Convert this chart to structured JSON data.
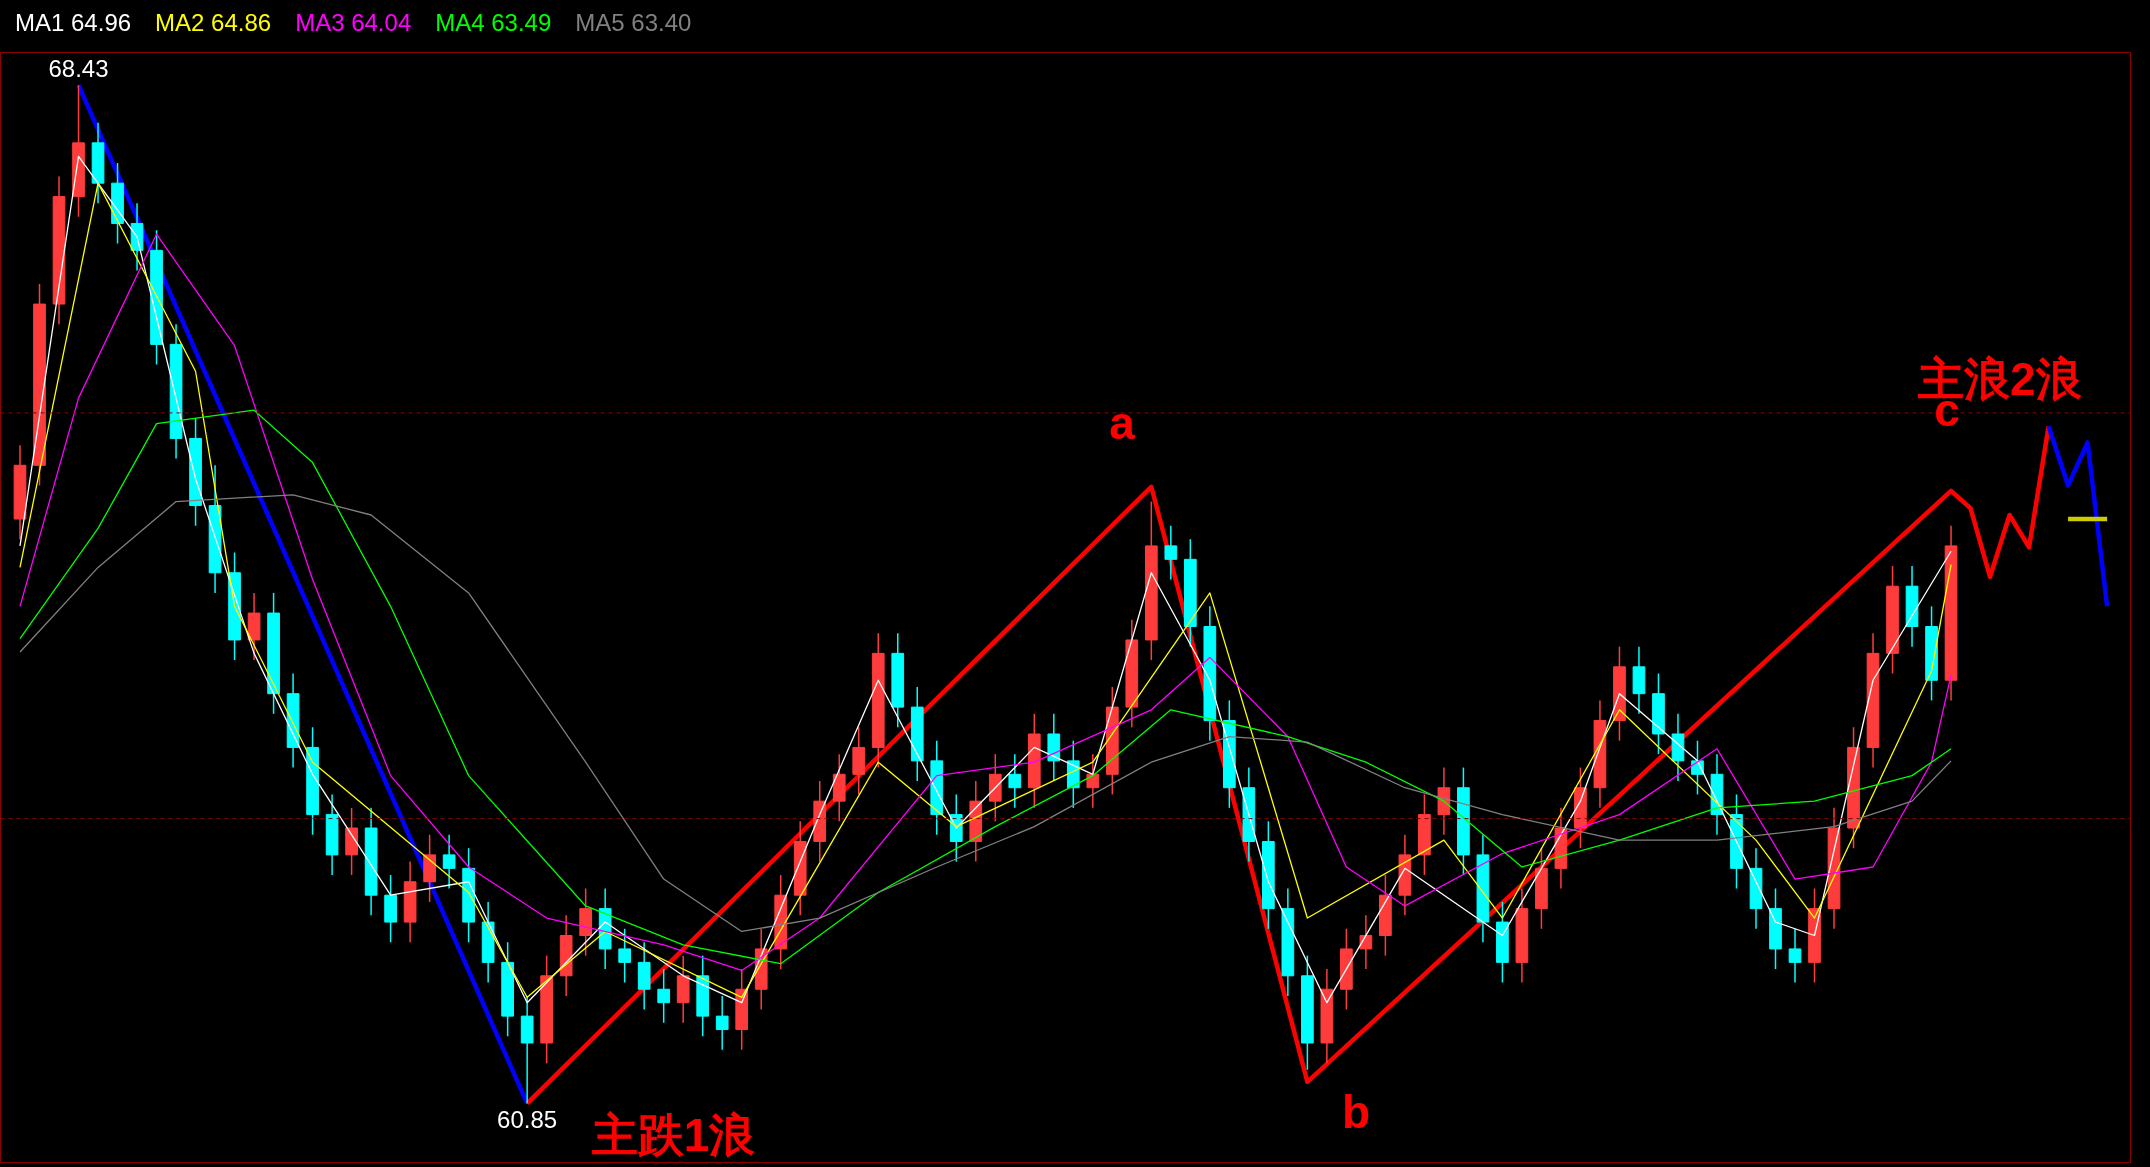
{
  "chart_data": {
    "type": "candlestick",
    "categories": [
      null,
      null,
      null,
      null,
      null,
      null,
      null,
      null,
      null,
      null,
      null,
      null,
      null,
      null,
      null,
      null,
      null,
      null,
      null,
      null,
      null,
      null,
      null,
      null,
      null,
      null,
      null,
      null,
      null,
      null,
      null,
      null,
      null,
      null,
      null,
      null,
      null,
      null,
      null,
      null,
      null,
      null,
      null,
      null,
      null,
      null,
      null,
      null,
      null,
      null,
      null,
      null,
      null,
      null,
      null,
      null,
      null,
      null,
      null,
      null,
      null,
      null,
      null,
      null,
      null,
      null,
      null,
      null,
      null,
      null,
      null,
      null,
      null,
      null,
      null,
      null,
      null,
      null,
      null,
      null,
      null,
      null,
      null,
      null,
      null,
      null,
      null,
      null,
      null,
      null,
      null,
      null,
      null,
      null,
      null,
      null,
      null,
      null,
      null,
      null,
      null,
      null,
      null,
      null,
      null,
      null,
      null,
      null
    ],
    "ohlc": [
      [
        65.2,
        65.75,
        65.05,
        65.6
      ],
      [
        65.6,
        66.95,
        65.45,
        66.8
      ],
      [
        66.8,
        67.75,
        66.65,
        67.6
      ],
      [
        67.6,
        68.43,
        67.45,
        68.0
      ],
      [
        68.0,
        68.15,
        67.55,
        67.7
      ],
      [
        67.7,
        67.85,
        67.25,
        67.4
      ],
      [
        67.4,
        67.55,
        67.05,
        67.2
      ],
      [
        67.2,
        67.35,
        66.35,
        66.5
      ],
      [
        66.5,
        66.65,
        65.65,
        65.8
      ],
      [
        65.8,
        65.95,
        65.15,
        65.3
      ],
      [
        65.3,
        65.6,
        64.65,
        64.8
      ],
      [
        64.8,
        64.95,
        64.15,
        64.3
      ],
      [
        64.3,
        64.65,
        64.15,
        64.5
      ],
      [
        64.5,
        64.65,
        63.75,
        63.9
      ],
      [
        63.9,
        64.05,
        63.35,
        63.5
      ],
      [
        63.5,
        63.65,
        62.85,
        63.0
      ],
      [
        63.0,
        63.15,
        62.55,
        62.7
      ],
      [
        62.7,
        63.05,
        62.55,
        62.9
      ],
      [
        62.9,
        63.05,
        62.25,
        62.4
      ],
      [
        62.4,
        62.55,
        62.05,
        62.2
      ],
      [
        62.2,
        62.65,
        62.05,
        62.5
      ],
      [
        62.5,
        62.85,
        62.35,
        62.7
      ],
      [
        62.7,
        62.85,
        62.45,
        62.6
      ],
      [
        62.6,
        62.75,
        62.05,
        62.2
      ],
      [
        62.2,
        62.35,
        61.75,
        61.9
      ],
      [
        61.9,
        62.05,
        61.35,
        61.5
      ],
      [
        61.5,
        61.65,
        60.85,
        61.3
      ],
      [
        61.3,
        61.95,
        61.15,
        61.8
      ],
      [
        61.8,
        62.25,
        61.65,
        62.1
      ],
      [
        62.1,
        62.45,
        61.95,
        62.3
      ],
      [
        62.3,
        62.45,
        61.85,
        62.0
      ],
      [
        62.0,
        62.15,
        61.75,
        61.9
      ],
      [
        61.9,
        62.05,
        61.55,
        61.7
      ],
      [
        61.7,
        61.85,
        61.45,
        61.6
      ],
      [
        61.6,
        61.95,
        61.45,
        61.8
      ],
      [
        61.8,
        61.95,
        61.35,
        61.5
      ],
      [
        61.5,
        61.65,
        61.25,
        61.4
      ],
      [
        61.4,
        61.85,
        61.25,
        61.7
      ],
      [
        61.7,
        62.15,
        61.55,
        62.0
      ],
      [
        62.0,
        62.55,
        61.85,
        62.4
      ],
      [
        62.4,
        62.95,
        62.25,
        62.8
      ],
      [
        62.8,
        63.25,
        62.65,
        63.1
      ],
      [
        63.1,
        63.45,
        62.95,
        63.3
      ],
      [
        63.3,
        63.65,
        63.15,
        63.5
      ],
      [
        63.5,
        64.35,
        63.35,
        64.2
      ],
      [
        64.2,
        64.35,
        63.65,
        63.8
      ],
      [
        63.8,
        63.95,
        63.25,
        63.4
      ],
      [
        63.4,
        63.55,
        62.85,
        63.0
      ],
      [
        63.0,
        63.15,
        62.65,
        62.8
      ],
      [
        62.8,
        63.25,
        62.65,
        63.1
      ],
      [
        63.1,
        63.45,
        62.95,
        63.3
      ],
      [
        63.3,
        63.45,
        63.05,
        63.2
      ],
      [
        63.2,
        63.75,
        63.05,
        63.6
      ],
      [
        63.6,
        63.75,
        63.25,
        63.4
      ],
      [
        63.4,
        63.55,
        63.05,
        63.2
      ],
      [
        63.2,
        63.45,
        63.05,
        63.3
      ],
      [
        63.3,
        63.95,
        63.15,
        63.8
      ],
      [
        63.8,
        64.45,
        63.65,
        64.3
      ],
      [
        64.3,
        65.33,
        64.15,
        65.0
      ],
      [
        65.0,
        65.15,
        64.75,
        64.9
      ],
      [
        64.9,
        65.05,
        64.25,
        64.4
      ],
      [
        64.4,
        64.55,
        63.55,
        63.7
      ],
      [
        63.7,
        63.85,
        63.05,
        63.2
      ],
      [
        63.2,
        63.35,
        62.65,
        62.8
      ],
      [
        62.8,
        62.95,
        62.15,
        62.3
      ],
      [
        62.3,
        62.45,
        61.65,
        61.8
      ],
      [
        61.8,
        61.95,
        61.1,
        61.3
      ],
      [
        61.3,
        61.85,
        61.15,
        61.7
      ],
      [
        61.7,
        62.15,
        61.55,
        62.0
      ],
      [
        62.0,
        62.25,
        61.85,
        62.1
      ],
      [
        62.1,
        62.55,
        61.95,
        62.4
      ],
      [
        62.4,
        62.85,
        62.25,
        62.7
      ],
      [
        62.7,
        63.15,
        62.55,
        63.0
      ],
      [
        63.0,
        63.35,
        62.85,
        63.2
      ],
      [
        63.2,
        63.35,
        62.55,
        62.7
      ],
      [
        62.7,
        62.85,
        62.05,
        62.2
      ],
      [
        62.2,
        62.35,
        61.75,
        61.9
      ],
      [
        61.9,
        62.45,
        61.75,
        62.3
      ],
      [
        62.3,
        62.75,
        62.15,
        62.6
      ],
      [
        62.6,
        63.05,
        62.45,
        62.9
      ],
      [
        62.9,
        63.35,
        62.75,
        63.2
      ],
      [
        63.2,
        63.85,
        63.05,
        63.7
      ],
      [
        63.7,
        64.25,
        63.55,
        64.1
      ],
      [
        64.1,
        64.25,
        63.75,
        63.9
      ],
      [
        63.9,
        64.05,
        63.45,
        63.6
      ],
      [
        63.6,
        63.75,
        63.25,
        63.4
      ],
      [
        63.4,
        63.55,
        63.15,
        63.3
      ],
      [
        63.3,
        63.45,
        62.85,
        63.0
      ],
      [
        63.0,
        63.15,
        62.45,
        62.6
      ],
      [
        62.6,
        62.75,
        62.15,
        62.3
      ],
      [
        62.3,
        62.45,
        61.85,
        62.0
      ],
      [
        62.0,
        62.15,
        61.75,
        61.9
      ],
      [
        61.9,
        62.45,
        61.75,
        62.3
      ],
      [
        62.3,
        63.05,
        62.15,
        62.9
      ],
      [
        62.9,
        63.65,
        62.75,
        63.5
      ],
      [
        63.5,
        64.35,
        63.35,
        64.2
      ],
      [
        64.2,
        64.85,
        64.05,
        64.7
      ],
      [
        64.7,
        64.85,
        64.25,
        64.4
      ],
      [
        64.4,
        64.55,
        63.85,
        64.0
      ],
      [
        64.0,
        65.15,
        63.85,
        65.0
      ],
      null,
      null,
      null,
      null,
      null,
      null,
      null,
      null
    ],
    "series": [
      {
        "name": "MA1 64.96",
        "type": "line",
        "color": "#ffffff",
        "values": [
          65.0,
          null,
          null,
          67.9,
          null,
          null,
          67.3,
          null,
          null,
          65.5,
          null,
          null,
          64.2,
          null,
          null,
          63.3,
          null,
          null,
          null,
          62.4,
          null,
          null,
          null,
          62.5,
          null,
          null,
          61.6,
          null,
          null,
          null,
          62.2,
          null,
          null,
          null,
          61.8,
          null,
          null,
          61.6,
          null,
          null,
          null,
          63.0,
          null,
          null,
          64.0,
          null,
          null,
          null,
          62.9,
          null,
          null,
          null,
          63.5,
          null,
          null,
          63.3,
          null,
          null,
          64.8,
          null,
          null,
          64.0,
          null,
          null,
          62.5,
          null,
          null,
          61.6,
          null,
          null,
          null,
          62.6,
          null,
          null,
          null,
          null,
          62.1,
          null,
          null,
          null,
          63.1,
          null,
          63.9,
          null,
          null,
          null,
          63.4,
          null,
          null,
          null,
          62.2,
          null,
          62.1,
          null,
          null,
          64.0,
          null,
          null,
          null,
          64.96,
          null,
          null,
          null,
          null,
          null,
          null,
          null,
          null
        ]
      },
      {
        "name": "MA2 64.86",
        "type": "line",
        "color": "#ffff00",
        "values": [
          64.84,
          null,
          null,
          null,
          67.7,
          null,
          null,
          null,
          null,
          66.3,
          null,
          64.55,
          null,
          null,
          null,
          63.39,
          null,
          null,
          null,
          null,
          null,
          null,
          null,
          62.42,
          null,
          null,
          61.64,
          null,
          null,
          null,
          62.13,
          null,
          null,
          null,
          null,
          null,
          null,
          61.64,
          null,
          null,
          null,
          null,
          null,
          null,
          63.39,
          null,
          null,
          null,
          62.91,
          null,
          null,
          null,
          null,
          null,
          null,
          63.39,
          null,
          null,
          null,
          null,
          null,
          64.65,
          null,
          null,
          null,
          null,
          62.23,
          null,
          null,
          null,
          null,
          null,
          null,
          62.81,
          null,
          null,
          62.23,
          null,
          null,
          null,
          null,
          null,
          63.78,
          null,
          null,
          null,
          null,
          null,
          null,
          62.81,
          null,
          null,
          62.23,
          null,
          null,
          null,
          null,
          null,
          64.07,
          64.86,
          null,
          null,
          null,
          null,
          null,
          null,
          null,
          null
        ]
      },
      {
        "name": "MA3 64.04",
        "type": "line",
        "color": "#ff00ff",
        "values": [
          64.55,
          null,
          null,
          66.1,
          null,
          null,
          null,
          67.32,
          null,
          null,
          null,
          66.49,
          null,
          null,
          null,
          64.75,
          null,
          null,
          null,
          63.29,
          null,
          null,
          null,
          62.61,
          null,
          null,
          null,
          62.23,
          null,
          null,
          null,
          null,
          null,
          62.03,
          null,
          null,
          null,
          61.84,
          null,
          null,
          null,
          62.23,
          null,
          null,
          null,
          null,
          null,
          63.29,
          null,
          null,
          null,
          null,
          63.39,
          null,
          null,
          null,
          null,
          null,
          63.78,
          null,
          null,
          64.17,
          null,
          null,
          null,
          63.58,
          null,
          null,
          62.61,
          null,
          null,
          62.32,
          null,
          null,
          null,
          null,
          62.71,
          null,
          null,
          null,
          null,
          null,
          63.0,
          null,
          null,
          null,
          null,
          63.49,
          null,
          null,
          null,
          62.52,
          null,
          null,
          null,
          62.61,
          null,
          null,
          63.39,
          64.04,
          null,
          null,
          null,
          null,
          null,
          null,
          null,
          null
        ]
      },
      {
        "name": "MA4 63.49",
        "type": "line",
        "color": "#00ff00",
        "values": [
          64.31,
          null,
          null,
          null,
          65.13,
          null,
          null,
          65.91,
          null,
          null,
          null,
          null,
          66.01,
          null,
          null,
          65.62,
          null,
          null,
          null,
          64.55,
          null,
          null,
          null,
          63.29,
          null,
          null,
          null,
          null,
          null,
          62.32,
          null,
          null,
          null,
          null,
          62.03,
          null,
          null,
          null,
          null,
          61.89,
          null,
          null,
          null,
          null,
          62.42,
          null,
          null,
          null,
          null,
          null,
          62.91,
          null,
          null,
          null,
          null,
          63.29,
          null,
          null,
          null,
          63.78,
          null,
          null,
          null,
          null,
          null,
          63.58,
          null,
          null,
          null,
          63.39,
          null,
          null,
          null,
          63.1,
          null,
          null,
          null,
          62.61,
          null,
          null,
          null,
          null,
          62.81,
          null,
          null,
          null,
          null,
          63.05,
          null,
          null,
          null,
          null,
          63.1,
          null,
          null,
          null,
          null,
          63.29,
          null,
          63.49,
          null,
          null,
          null,
          null,
          null,
          null,
          null,
          null
        ]
      },
      {
        "name": "MA5 63.40",
        "type": "line",
        "color": "#808080",
        "values": [
          64.21,
          null,
          null,
          null,
          64.84,
          null,
          null,
          null,
          65.33,
          null,
          null,
          null,
          null,
          null,
          65.38,
          null,
          null,
          null,
          65.23,
          null,
          null,
          null,
          null,
          64.65,
          null,
          null,
          null,
          null,
          null,
          63.39,
          null,
          null,
          null,
          62.52,
          null,
          null,
          null,
          62.13,
          null,
          null,
          null,
          62.23,
          null,
          null,
          null,
          null,
          null,
          62.61,
          null,
          null,
          null,
          null,
          62.91,
          null,
          null,
          null,
          null,
          null,
          63.39,
          null,
          null,
          null,
          63.58,
          null,
          null,
          null,
          63.54,
          null,
          null,
          null,
          null,
          63.2,
          null,
          null,
          null,
          null,
          63.0,
          null,
          null,
          null,
          null,
          null,
          62.81,
          null,
          null,
          null,
          null,
          62.81,
          null,
          null,
          null,
          null,
          null,
          62.91,
          null,
          null,
          null,
          63.1,
          null,
          63.4,
          null,
          null,
          null,
          null,
          null,
          null,
          null,
          null
        ]
      },
      {
        "type": "line",
        "color": "#0000ff",
        "values": [
          null,
          null,
          null,
          68.43,
          null,
          null,
          null,
          null,
          null,
          null,
          null,
          null,
          null,
          null,
          null,
          null,
          null,
          null,
          null,
          null,
          null,
          null,
          null,
          null,
          null,
          null,
          60.85,
          null,
          null,
          null,
          null,
          null,
          null,
          null,
          null,
          null,
          null,
          null,
          null,
          null,
          null,
          null,
          null,
          null,
          null,
          null,
          null,
          null,
          null,
          null,
          null,
          null,
          null,
          null,
          null,
          null,
          null,
          null,
          null,
          null,
          null,
          null,
          null,
          null,
          null,
          null,
          null,
          null,
          null,
          null,
          null,
          null,
          null,
          null,
          null,
          null,
          null,
          null,
          null,
          null,
          null,
          null,
          null,
          null,
          null,
          null,
          null,
          null,
          null,
          null,
          null,
          null,
          null,
          null,
          null,
          null,
          null,
          null,
          null,
          null,
          null,
          null,
          null,
          null,
          null,
          null,
          null,
          null
        ]
      },
      {
        "type": "line",
        "color": "#ff0000",
        "values": [
          null,
          null,
          null,
          null,
          null,
          null,
          null,
          null,
          null,
          null,
          null,
          null,
          null,
          null,
          null,
          null,
          null,
          null,
          null,
          null,
          null,
          null,
          null,
          null,
          null,
          null,
          60.85,
          null,
          null,
          null,
          null,
          null,
          null,
          null,
          null,
          null,
          null,
          null,
          null,
          null,
          null,
          null,
          null,
          null,
          null,
          null,
          null,
          null,
          null,
          null,
          null,
          null,
          null,
          null,
          null,
          null,
          null,
          null,
          65.44,
          null,
          null,
          null,
          null,
          null,
          null,
          null,
          61.01,
          null,
          null,
          null,
          null,
          null,
          null,
          null,
          null,
          null,
          null,
          null,
          null,
          null,
          null,
          null,
          null,
          null,
          null,
          null,
          null,
          null,
          null,
          null,
          null,
          null,
          null,
          null,
          null,
          null,
          null,
          null,
          null,
          65.41,
          65.28,
          64.77,
          65.23,
          64.99,
          65.89,
          null,
          null,
          null
        ]
      },
      {
        "type": "line",
        "color": "#0000ff",
        "values": [
          null,
          null,
          null,
          null,
          null,
          null,
          null,
          null,
          null,
          null,
          null,
          null,
          null,
          null,
          null,
          null,
          null,
          null,
          null,
          null,
          null,
          null,
          null,
          null,
          null,
          null,
          null,
          null,
          null,
          null,
          null,
          null,
          null,
          null,
          null,
          null,
          null,
          null,
          null,
          null,
          null,
          null,
          null,
          null,
          null,
          null,
          null,
          null,
          null,
          null,
          null,
          null,
          null,
          null,
          null,
          null,
          null,
          null,
          null,
          null,
          null,
          null,
          null,
          null,
          null,
          null,
          null,
          null,
          null,
          null,
          null,
          null,
          null,
          null,
          null,
          null,
          null,
          null,
          null,
          null,
          null,
          null,
          null,
          null,
          null,
          null,
          null,
          null,
          null,
          null,
          null,
          null,
          null,
          null,
          null,
          null,
          null,
          null,
          null,
          null,
          null,
          null,
          null,
          null,
          65.89,
          65.45,
          65.77,
          64.55
        ]
      },
      {
        "type": "line",
        "color": "#cccc00",
        "values": [
          null,
          null,
          null,
          null,
          null,
          null,
          null,
          null,
          null,
          null,
          null,
          null,
          null,
          null,
          null,
          null,
          null,
          null,
          null,
          null,
          null,
          null,
          null,
          null,
          null,
          null,
          null,
          null,
          null,
          null,
          null,
          null,
          null,
          null,
          null,
          null,
          null,
          null,
          null,
          null,
          null,
          null,
          null,
          null,
          null,
          null,
          null,
          null,
          null,
          null,
          null,
          null,
          null,
          null,
          null,
          null,
          null,
          null,
          null,
          null,
          null,
          null,
          null,
          null,
          null,
          null,
          null,
          null,
          null,
          null,
          null,
          null,
          null,
          null,
          null,
          null,
          null,
          null,
          null,
          null,
          null,
          null,
          null,
          null,
          null,
          null,
          null,
          null,
          null,
          null,
          null,
          null,
          null,
          null,
          null,
          null,
          null,
          null,
          null,
          null,
          null,
          null,
          null,
          null,
          null,
          65.2,
          65.2,
          65.2
        ]
      }
    ],
    "ref_lines": [
      {
        "axis": "y",
        "value": 65.99,
        "color": "#8b0000",
        "line_style": "dashed"
      },
      {
        "axis": "y",
        "value": 62.97,
        "color": "#8b0000",
        "line_style": "dashed"
      }
    ],
    "annotations": [
      {
        "text": "68.43",
        "y": 68.43
      },
      {
        "text": "60.85",
        "y": 60.85
      },
      "a",
      "b",
      {
        "text": "c",
        "y": 65.41
      },
      "主跌1浪",
      "主浪2浪"
    ],
    "grid": false,
    "tick_labels": false
  }
}
